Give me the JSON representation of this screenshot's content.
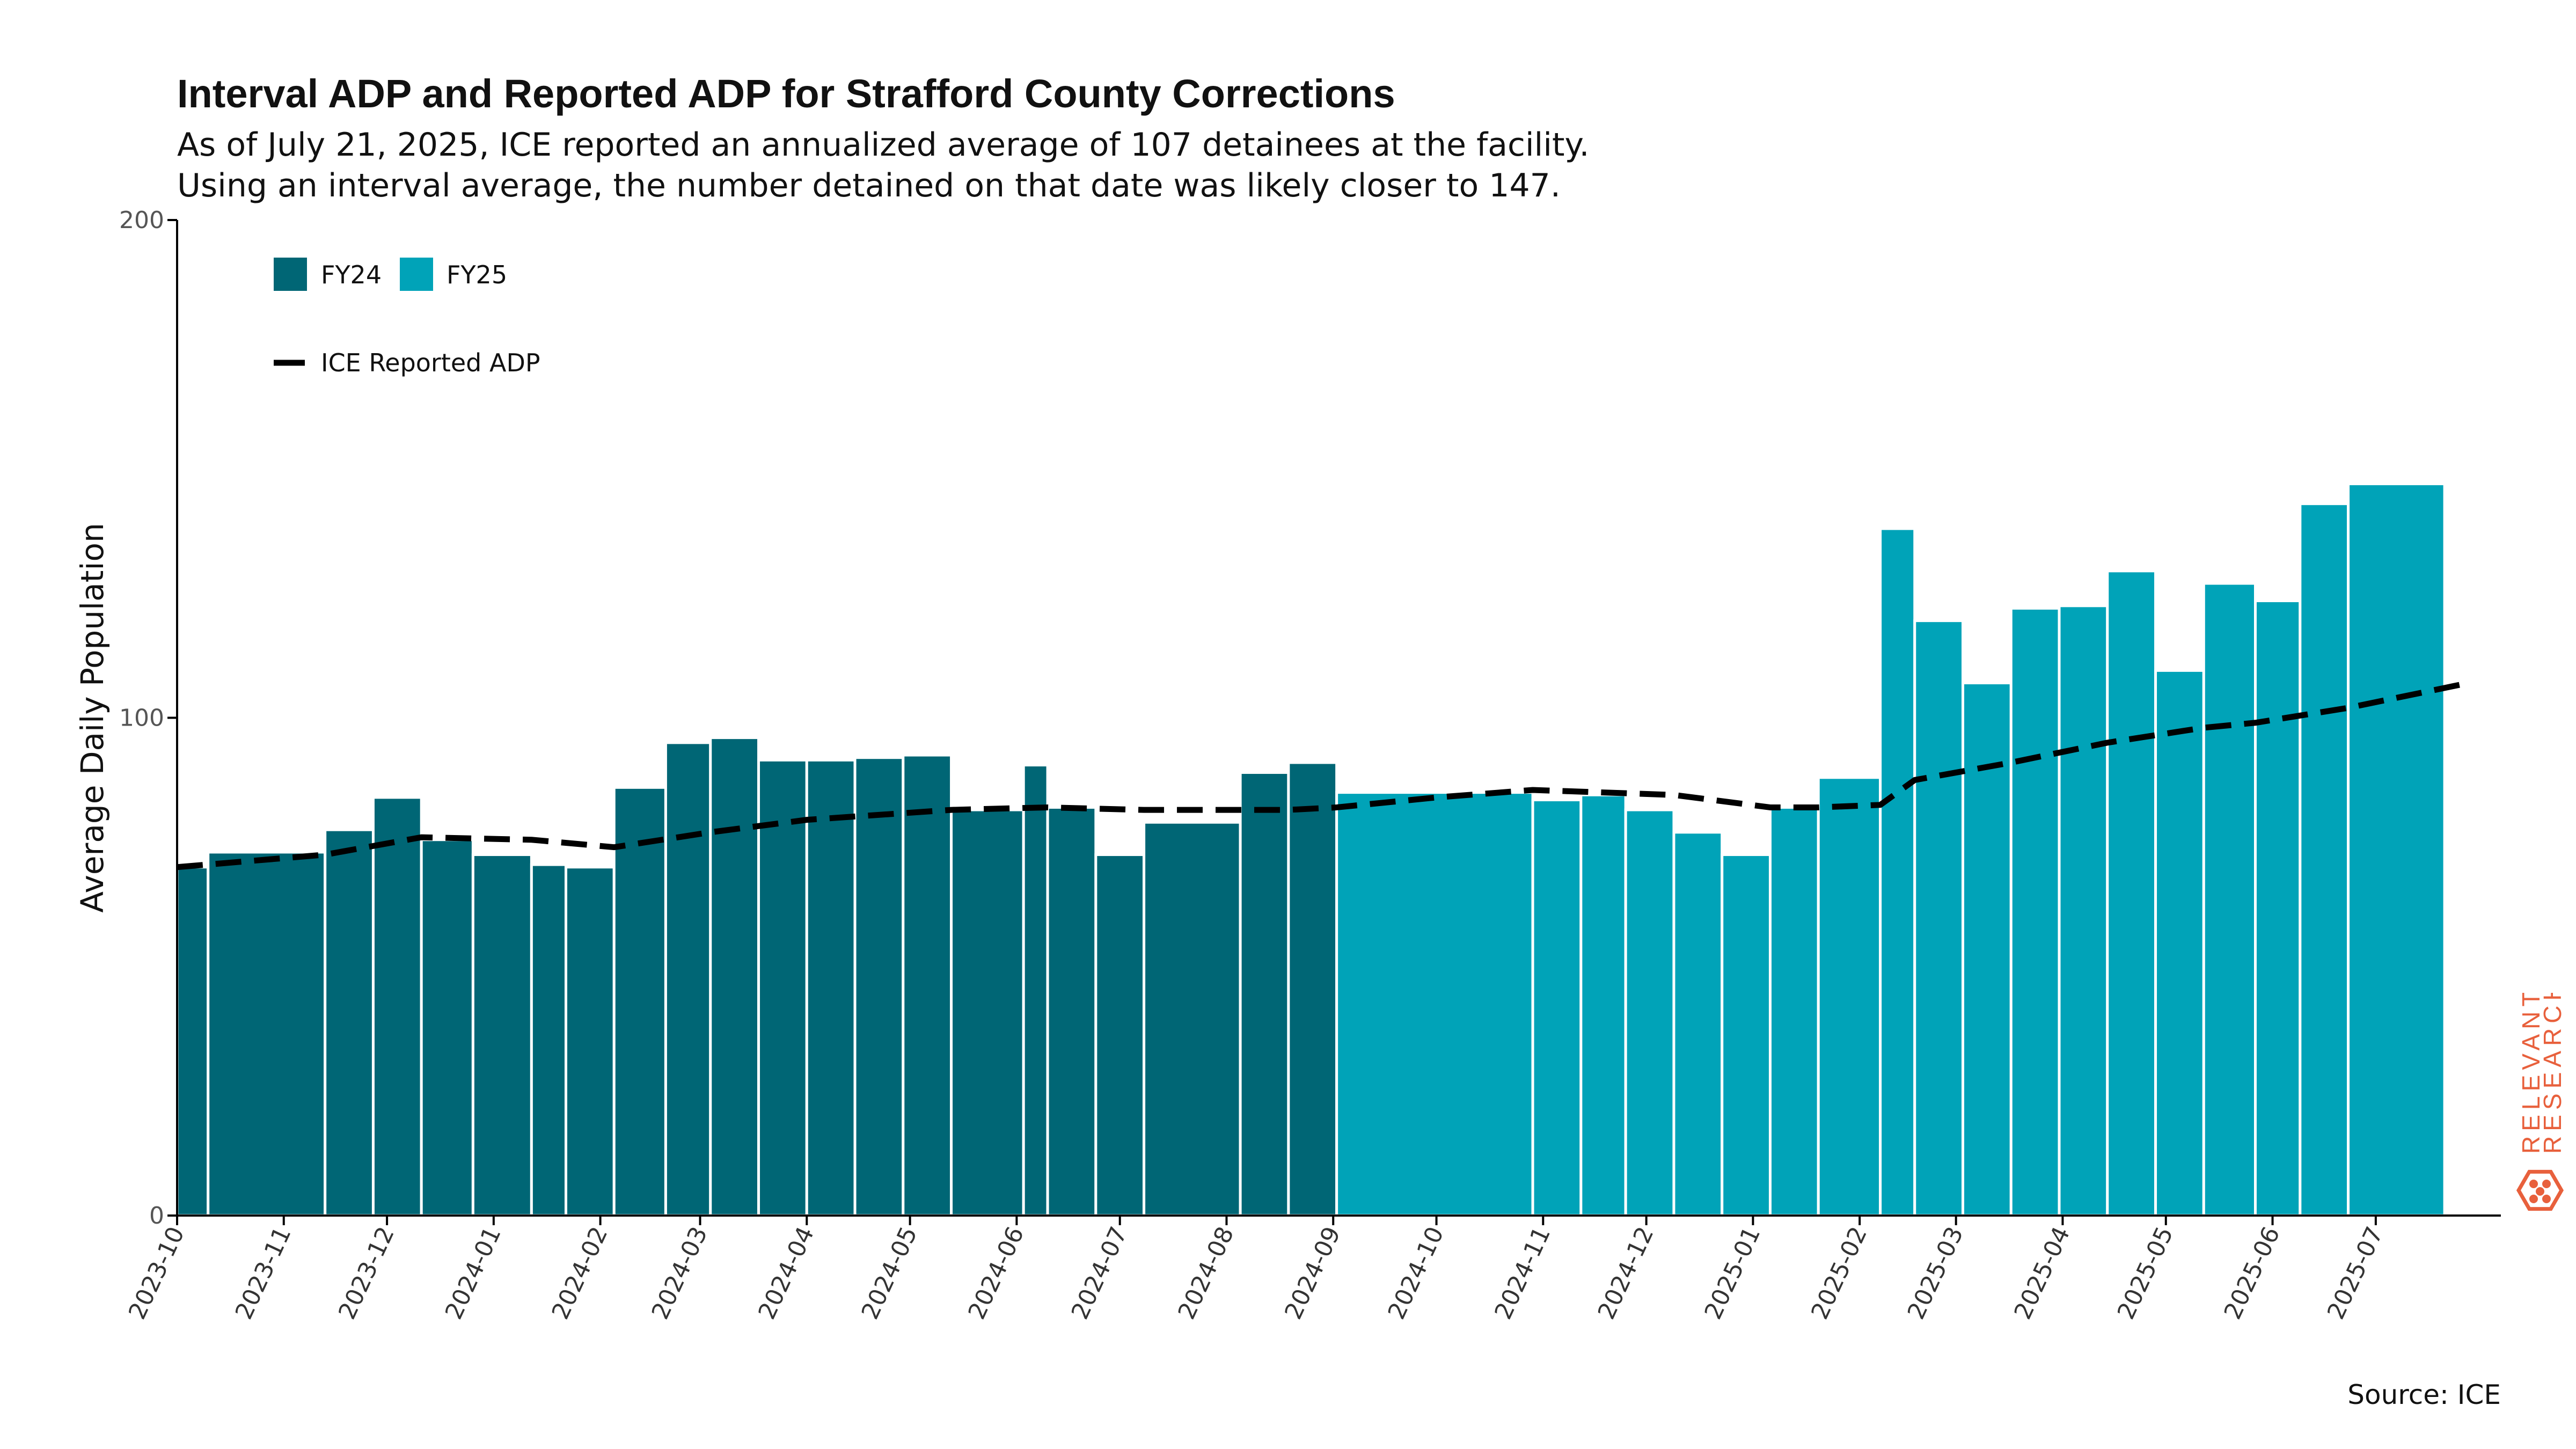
{
  "header": {
    "title": "Interval ADP and Reported ADP for Strafford County Corrections",
    "subtitle_line1": "As of July 21, 2025, ICE reported an annualized average of 107 detainees at the facility.",
    "subtitle_line2": "Using an interval average, the number detained on that date was likely closer to 147."
  },
  "footer": {
    "source": "Source: ICE"
  },
  "brand": {
    "line1": "RELEVANT",
    "line2": "RESEARCH",
    "color": "#e8603c",
    "icon": "hexagon-logo-icon"
  },
  "colors": {
    "FY24": "#006675",
    "FY25": "#00a3b8",
    "line": "#000000",
    "axis": "#000000"
  },
  "chart_data": {
    "type": "bar",
    "ylabel": "Average Daily Population",
    "xlabel": "",
    "ylim": [
      0,
      200
    ],
    "yticks": [
      0,
      100,
      200
    ],
    "xlim": [
      "2023-10-01",
      "2025-07-28"
    ],
    "xticks": [
      "2023-10",
      "2023-11",
      "2023-12",
      "2024-01",
      "2024-02",
      "2024-03",
      "2024-04",
      "2024-05",
      "2024-06",
      "2024-07",
      "2024-08",
      "2024-09",
      "2024-10",
      "2024-11",
      "2024-12",
      "2025-01",
      "2025-02",
      "2025-03",
      "2025-04",
      "2025-05",
      "2025-06",
      "2025-07"
    ],
    "legend": {
      "placement": "top-left",
      "bar_entries": [
        "FY24",
        "FY25"
      ],
      "line_entry": "ICE Reported ADP"
    },
    "bars": [
      {
        "start": "2023-10-01",
        "end": "2023-10-10",
        "value": 70,
        "fy": "FY24"
      },
      {
        "start": "2023-10-10",
        "end": "2023-11-13",
        "value": 73,
        "fy": "FY24"
      },
      {
        "start": "2023-11-13",
        "end": "2023-11-27",
        "value": 77.5,
        "fy": "FY24"
      },
      {
        "start": "2023-11-27",
        "end": "2023-12-11",
        "value": 84,
        "fy": "FY24"
      },
      {
        "start": "2023-12-11",
        "end": "2023-12-26",
        "value": 75.5,
        "fy": "FY24"
      },
      {
        "start": "2023-12-26",
        "end": "2024-01-12",
        "value": 72.5,
        "fy": "FY24"
      },
      {
        "start": "2024-01-12",
        "end": "2024-01-22",
        "value": 70.5,
        "fy": "FY24"
      },
      {
        "start": "2024-01-22",
        "end": "2024-02-05",
        "value": 70,
        "fy": "FY24"
      },
      {
        "start": "2024-02-05",
        "end": "2024-02-20",
        "value": 86,
        "fy": "FY24"
      },
      {
        "start": "2024-02-20",
        "end": "2024-03-04",
        "value": 95,
        "fy": "FY24"
      },
      {
        "start": "2024-03-04",
        "end": "2024-03-18",
        "value": 96,
        "fy": "FY24"
      },
      {
        "start": "2024-03-18",
        "end": "2024-04-01",
        "value": 91.5,
        "fy": "FY24"
      },
      {
        "start": "2024-04-01",
        "end": "2024-04-15",
        "value": 91.5,
        "fy": "FY24"
      },
      {
        "start": "2024-04-15",
        "end": "2024-04-29",
        "value": 92,
        "fy": "FY24"
      },
      {
        "start": "2024-04-29",
        "end": "2024-05-13",
        "value": 92.5,
        "fy": "FY24"
      },
      {
        "start": "2024-05-13",
        "end": "2024-06-03",
        "value": 81.5,
        "fy": "FY24"
      },
      {
        "start": "2024-06-03",
        "end": "2024-06-10",
        "value": 90.5,
        "fy": "FY24"
      },
      {
        "start": "2024-06-10",
        "end": "2024-06-24",
        "value": 82,
        "fy": "FY24"
      },
      {
        "start": "2024-06-24",
        "end": "2024-07-08",
        "value": 72.5,
        "fy": "FY24"
      },
      {
        "start": "2024-07-08",
        "end": "2024-08-05",
        "value": 79,
        "fy": "FY24"
      },
      {
        "start": "2024-08-05",
        "end": "2024-08-19",
        "value": 89,
        "fy": "FY24"
      },
      {
        "start": "2024-08-19",
        "end": "2024-09-02",
        "value": 91,
        "fy": "FY24"
      },
      {
        "start": "2024-09-02",
        "end": "2024-10-29",
        "value": 85,
        "fy": "FY25"
      },
      {
        "start": "2024-10-29",
        "end": "2024-11-12",
        "value": 83.5,
        "fy": "FY25"
      },
      {
        "start": "2024-11-12",
        "end": "2024-11-25",
        "value": 84.5,
        "fy": "FY25"
      },
      {
        "start": "2024-11-25",
        "end": "2024-12-09",
        "value": 81.5,
        "fy": "FY25"
      },
      {
        "start": "2024-12-09",
        "end": "2024-12-23",
        "value": 77,
        "fy": "FY25"
      },
      {
        "start": "2024-12-23",
        "end": "2025-01-06",
        "value": 72.5,
        "fy": "FY25"
      },
      {
        "start": "2025-01-06",
        "end": "2025-01-20",
        "value": 82,
        "fy": "FY25"
      },
      {
        "start": "2025-01-20",
        "end": "2025-02-07",
        "value": 88,
        "fy": "FY25"
      },
      {
        "start": "2025-02-07",
        "end": "2025-02-17",
        "value": 138,
        "fy": "FY25"
      },
      {
        "start": "2025-02-17",
        "end": "2025-03-03",
        "value": 119.5,
        "fy": "FY25"
      },
      {
        "start": "2025-03-03",
        "end": "2025-03-17",
        "value": 107,
        "fy": "FY25"
      },
      {
        "start": "2025-03-17",
        "end": "2025-03-31",
        "value": 122,
        "fy": "FY25"
      },
      {
        "start": "2025-03-31",
        "end": "2025-04-14",
        "value": 122.5,
        "fy": "FY25"
      },
      {
        "start": "2025-04-14",
        "end": "2025-04-28",
        "value": 129.5,
        "fy": "FY25"
      },
      {
        "start": "2025-04-28",
        "end": "2025-05-12",
        "value": 109.5,
        "fy": "FY25"
      },
      {
        "start": "2025-05-12",
        "end": "2025-05-27",
        "value": 127,
        "fy": "FY25"
      },
      {
        "start": "2025-05-27",
        "end": "2025-06-09",
        "value": 123.5,
        "fy": "FY25"
      },
      {
        "start": "2025-06-09",
        "end": "2025-06-23",
        "value": 143,
        "fy": "FY25"
      },
      {
        "start": "2025-06-23",
        "end": "2025-07-21",
        "value": 147,
        "fy": "FY25"
      }
    ],
    "line": {
      "name": "ICE Reported ADP",
      "points": [
        [
          "2023-10-01",
          70
        ],
        [
          "2023-11-13",
          72.5
        ],
        [
          "2023-12-11",
          76
        ],
        [
          "2024-01-12",
          75.5
        ],
        [
          "2024-02-05",
          74
        ],
        [
          "2024-03-04",
          77
        ],
        [
          "2024-04-01",
          79.5
        ],
        [
          "2024-05-13",
          81.5
        ],
        [
          "2024-06-10",
          82
        ],
        [
          "2024-07-08",
          81.5
        ],
        [
          "2024-08-19",
          81.5
        ],
        [
          "2024-09-02",
          82
        ],
        [
          "2024-10-01",
          84
        ],
        [
          "2024-10-29",
          85.5
        ],
        [
          "2024-12-09",
          84.5
        ],
        [
          "2025-01-06",
          82
        ],
        [
          "2025-01-20",
          82
        ],
        [
          "2025-02-07",
          82.5
        ],
        [
          "2025-02-17",
          87.5
        ],
        [
          "2025-03-17",
          91
        ],
        [
          "2025-04-14",
          95
        ],
        [
          "2025-05-12",
          98
        ],
        [
          "2025-05-27",
          99
        ],
        [
          "2025-06-23",
          102
        ],
        [
          "2025-07-21",
          106
        ],
        [
          "2025-07-28",
          107
        ]
      ]
    }
  }
}
